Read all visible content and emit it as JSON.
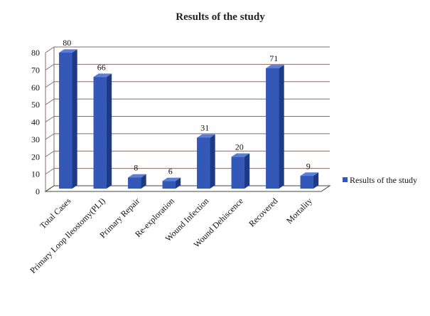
{
  "chart_data": {
    "type": "bar",
    "title": "Results of the study",
    "categories": [
      "Total Cases",
      "Primary Loop Ileostomy(PLI)",
      "Primary Repair",
      "Re-exploration",
      "Wound Infection",
      "Wound Dehiscence",
      "Recovered",
      "Mortality"
    ],
    "series": [
      {
        "name": "Results of the study",
        "values": [
          80,
          66,
          8,
          6,
          31,
          20,
          71,
          9
        ]
      }
    ],
    "yticks": [
      0,
      10,
      20,
      30,
      40,
      50,
      60,
      70,
      80
    ],
    "ylim": [
      0,
      80
    ],
    "grid": true,
    "legend": "right",
    "colors": {
      "bar_front": "#3358b8",
      "bar_side": "#1f3a84",
      "bar_top": "#5a7fd6",
      "grid": "#8b6a6a"
    }
  }
}
